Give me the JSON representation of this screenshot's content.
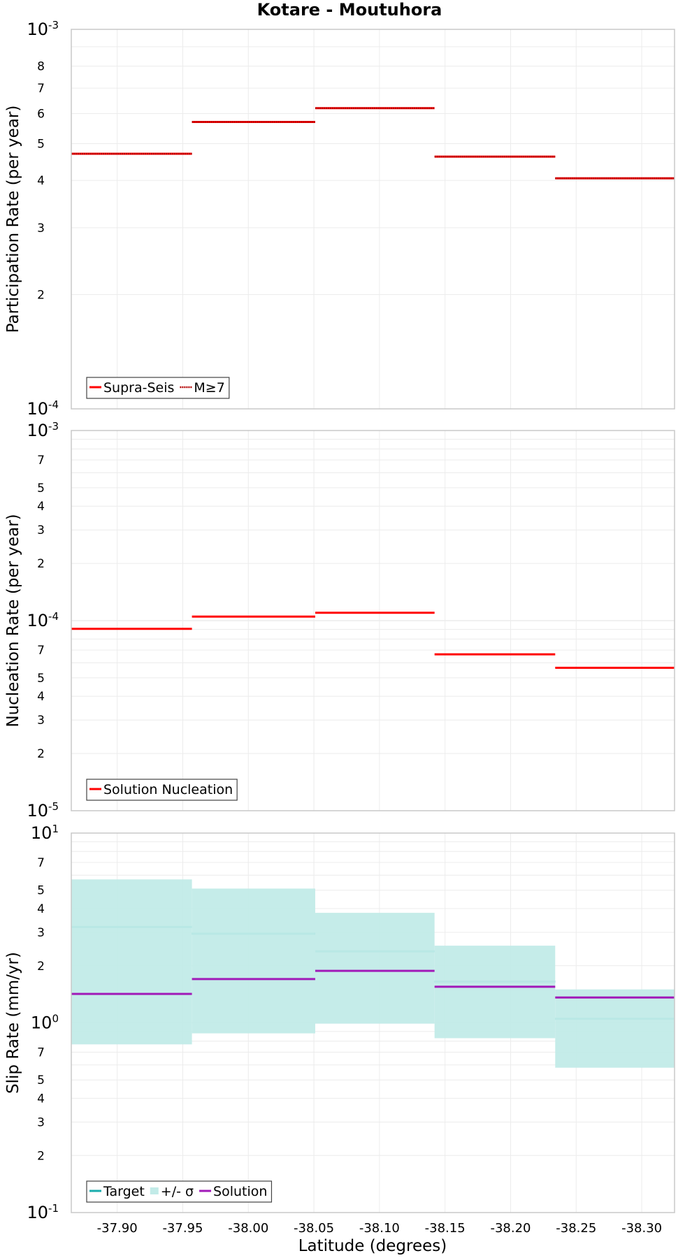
{
  "chart_data": {
    "title": "Kotare - Moutuhora",
    "xlabel": "Latitude (degrees)",
    "x_tick_labels": [
      "-37.90",
      "-37.95",
      "-38.00",
      "-38.05",
      "-38.10",
      "-38.15",
      "-38.20",
      "-38.25",
      "-38.30"
    ],
    "x_ticks": [
      -37.9,
      -37.95,
      -38.0,
      -38.05,
      -38.1,
      -38.15,
      -38.2,
      -38.25,
      -38.3
    ],
    "xlim": [
      -37.865,
      -38.325
    ],
    "x_reversed": true,
    "segment_edges": [
      -37.865,
      -37.957,
      -38.051,
      -38.142,
      -38.234,
      -38.325
    ],
    "panels": [
      {
        "type": "line",
        "yscale": "log",
        "ylabel": "Participation Rate (per year)",
        "ylim": [
          0.0001,
          0.001
        ],
        "minor_tick_labels": [
          "2",
          "3",
          "4",
          "5",
          "6",
          "7",
          "8"
        ],
        "series": [
          {
            "name": "Supra-Seis",
            "style": "solid",
            "color": "#ff0000",
            "values": [
              0.00047,
              0.00057,
              0.00062,
              0.000462,
              0.000405
            ]
          },
          {
            "name": "M≥7",
            "style": "dotted",
            "color": "#ff0000",
            "values": [
              0.00047,
              0.00057,
              0.00062,
              0.000462,
              0.000405
            ]
          }
        ]
      },
      {
        "type": "line",
        "yscale": "log",
        "ylabel": "Nucleation Rate (per year)",
        "ylim": [
          1e-05,
          0.001
        ],
        "minor_tick_labels": [
          "2",
          "3",
          "4",
          "5",
          "7"
        ],
        "series": [
          {
            "name": "Solution Nucleation",
            "style": "solid",
            "color": "#ff0000",
            "values": [
              9.05e-05,
              0.000105,
              0.00011,
              6.65e-05,
              5.65e-05
            ]
          }
        ]
      },
      {
        "type": "line",
        "yscale": "log",
        "ylabel": "Slip Rate (mm/yr)",
        "ylim": [
          0.1,
          10
        ],
        "minor_tick_labels": [
          "2",
          "3",
          "4",
          "5",
          "7"
        ],
        "series": [
          {
            "name": "Target",
            "style": "solid",
            "color": "#1aadad",
            "values": [
              3.2,
              2.95,
              2.38,
              1.65,
              1.05
            ]
          },
          {
            "name": "+/- σ",
            "style": "band",
            "color": "#c2ebe8",
            "lower": [
              0.77,
              0.88,
              0.99,
              0.83,
              0.58
            ],
            "upper": [
              5.7,
              5.1,
              3.8,
              2.55,
              1.5
            ]
          },
          {
            "name": "Solution",
            "style": "solid",
            "color": "#a11ab8",
            "values": [
              1.42,
              1.7,
              1.88,
              1.55,
              1.36
            ]
          }
        ]
      }
    ]
  }
}
